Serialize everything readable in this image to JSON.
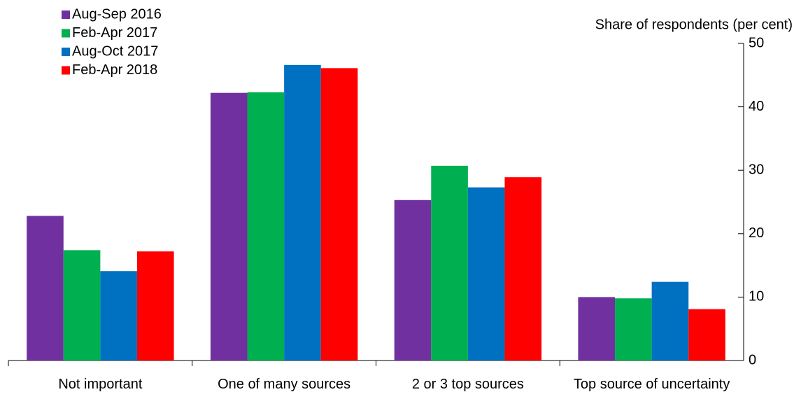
{
  "chart_data": {
    "type": "bar",
    "y_axis_label": "Share of respondents (per cent)",
    "categories": [
      "Not important",
      "One of many sources",
      "2 or 3 top sources",
      "Top source of uncertainty"
    ],
    "series": [
      {
        "name": "Aug-Sep 2016",
        "color": "#7030a0",
        "values": [
          22.8,
          42.2,
          25.3,
          10.0
        ]
      },
      {
        "name": "Feb-Apr 2017",
        "color": "#00b050",
        "values": [
          17.4,
          42.3,
          30.7,
          9.8
        ]
      },
      {
        "name": "Aug-Oct 2017",
        "color": "#0070c0",
        "values": [
          14.1,
          46.6,
          27.3,
          12.4
        ]
      },
      {
        "name": "Feb-Apr 2018",
        "color": "#ff0000",
        "values": [
          17.2,
          46.1,
          28.9,
          8.1
        ]
      }
    ],
    "ylim": [
      0,
      50
    ],
    "yticks": [
      0,
      10,
      20,
      30,
      40,
      50
    ],
    "y_axis_side": "right",
    "legend": "top-left"
  }
}
